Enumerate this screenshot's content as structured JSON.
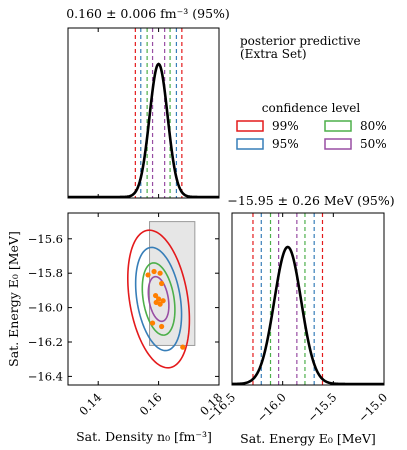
{
  "chart_data": {
    "type": "corner-plot",
    "colors": {
      "99%": "#e41a1c",
      "95%": "#377eb8",
      "80%": "#4daf4a",
      "50%": "#984ea3",
      "points": "#ff7f00",
      "posterior": "#000000",
      "box_fill": "#e6e6e6",
      "box_edge": "#9a9a9a"
    },
    "density_panel": {
      "title": "0.160 ± 0.006 fm⁻³ (95%)",
      "xlim": [
        0.13,
        0.18
      ],
      "mean": 0.16,
      "sd": 0.003,
      "intervals": [
        {
          "level": "99%",
          "low": 0.1523,
          "high": 0.1677
        },
        {
          "level": "95%",
          "low": 0.1541,
          "high": 0.1659
        },
        {
          "level": "80%",
          "low": 0.1562,
          "high": 0.1638
        },
        {
          "level": "50%",
          "low": 0.158,
          "high": 0.162
        }
      ]
    },
    "energy_panel": {
      "title": "−15.95 ± 0.26 MeV (95%)",
      "xlim": [
        -16.5,
        -15.0
      ],
      "xticks": [
        "−16.5",
        "−16.0",
        "−15.5",
        "−15.0"
      ],
      "xlabel": "Sat. Energy E₀ [MeV]",
      "mean": -15.95,
      "sd": 0.133,
      "intervals": [
        {
          "level": "99%",
          "low": -16.293,
          "high": -15.607
        },
        {
          "level": "95%",
          "low": -16.211,
          "high": -15.689
        },
        {
          "level": "80%",
          "low": -16.12,
          "high": -15.78
        },
        {
          "level": "50%",
          "low": -16.04,
          "high": -15.86
        }
      ]
    },
    "joint_panel": {
      "xlim": [
        0.13,
        0.18
      ],
      "ylim": [
        -16.45,
        -15.45
      ],
      "xticks": [
        "0.14",
        "0.16",
        "0.18"
      ],
      "yticks": [
        "−15.6",
        "−15.8",
        "−16.0",
        "−16.2",
        "−16.4"
      ],
      "xlabel": "Sat. Density n₀ [fm⁻³]",
      "ylabel": "Sat. Energy E₀ [MeV]",
      "saturation_box": {
        "x": [
          0.157,
          0.172
        ],
        "y": [
          -16.22,
          -15.5
        ]
      },
      "ellipses": [
        {
          "level": "99%",
          "cx": 0.16,
          "cy": -15.95,
          "a": 0.0102,
          "b": 0.4,
          "tilt": 0.3
        },
        {
          "level": "95%",
          "cx": 0.16,
          "cy": -15.95,
          "a": 0.0076,
          "b": 0.3,
          "tilt": 0.3
        },
        {
          "level": "80%",
          "cx": 0.16,
          "cy": -15.95,
          "a": 0.0054,
          "b": 0.21,
          "tilt": 0.3
        },
        {
          "level": "50%",
          "cx": 0.16,
          "cy": -15.95,
          "a": 0.0034,
          "b": 0.13,
          "tilt": 0.3
        }
      ],
      "points": [
        {
          "x": 0.1565,
          "y": -15.81
        },
        {
          "x": 0.1585,
          "y": -15.79
        },
        {
          "x": 0.1605,
          "y": -15.8
        },
        {
          "x": 0.161,
          "y": -15.86
        },
        {
          "x": 0.159,
          "y": -15.93
        },
        {
          "x": 0.16,
          "y": -15.95
        },
        {
          "x": 0.1615,
          "y": -15.96
        },
        {
          "x": 0.1605,
          "y": -15.98
        },
        {
          "x": 0.1592,
          "y": -15.97
        },
        {
          "x": 0.158,
          "y": -16.09
        },
        {
          "x": 0.161,
          "y": -16.11
        },
        {
          "x": 0.168,
          "y": -16.23
        }
      ]
    },
    "legend": {
      "posterior_label_line1": "posterior predictive",
      "posterior_label_line2": "(Extra Set)",
      "title": "confidence level",
      "placement": "top-right",
      "entries": [
        "99%",
        "95%",
        "80%",
        "50%"
      ]
    }
  }
}
